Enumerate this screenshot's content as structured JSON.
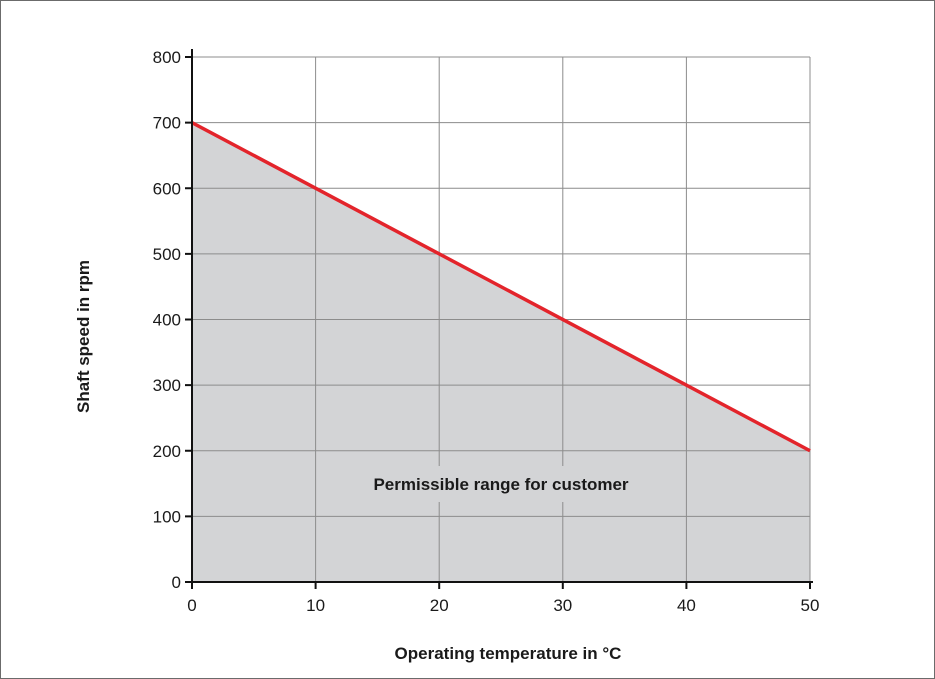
{
  "chart_data": {
    "type": "area",
    "x": [
      0,
      50
    ],
    "series": [
      {
        "values": [
          700,
          200
        ],
        "color": "#e3242b"
      }
    ],
    "xlabel": "Operating temperature in °C",
    "ylabel": "Shaft speed in rpm",
    "xlim": [
      0,
      50
    ],
    "ylim": [
      0,
      800
    ],
    "xticks": [
      0,
      10,
      20,
      30,
      40,
      50
    ],
    "yticks": [
      0,
      100,
      200,
      300,
      400,
      500,
      600,
      700,
      800
    ],
    "xtick_labels": [
      "0",
      "10",
      "20",
      "30",
      "40",
      "50"
    ],
    "ytick_labels": [
      "0",
      "100",
      "200",
      "300",
      "400",
      "500",
      "600",
      "700",
      "800"
    ],
    "annotation": "Permissible range for customer",
    "grid": true,
    "fill_color": "#d3d4d6",
    "grid_color": "#8c8c8c"
  }
}
